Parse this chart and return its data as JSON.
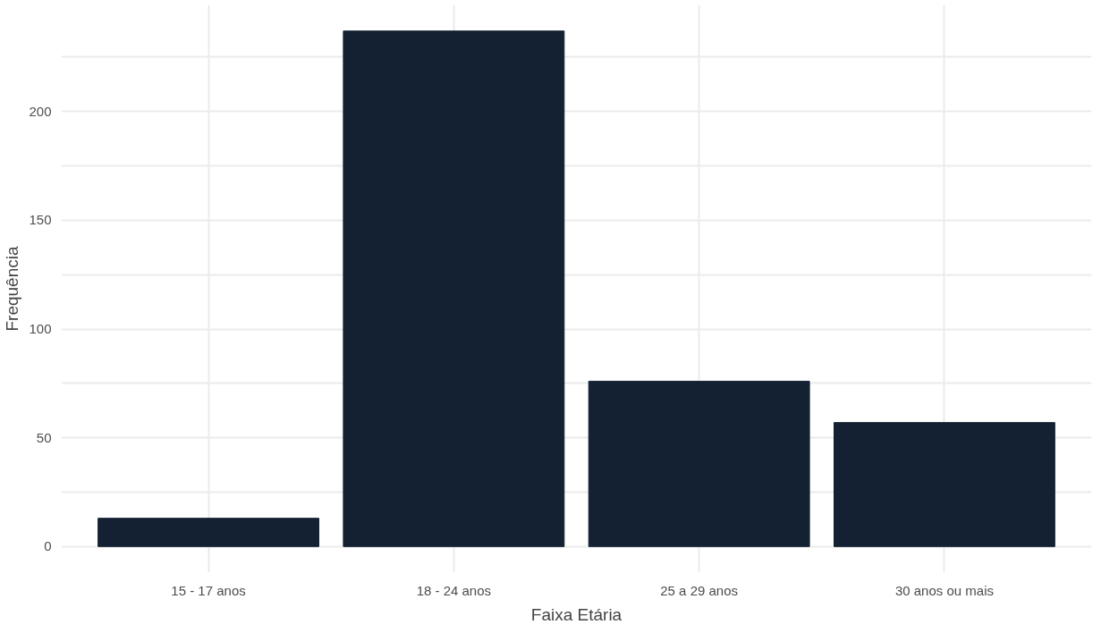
{
  "chart_data": {
    "type": "bar",
    "xlabel": "Faixa Etária",
    "ylabel": "Frequência",
    "categories": [
      "15 - 17 anos",
      "18 - 24 anos",
      "25 a 29 anos",
      "30 anos ou mais"
    ],
    "values": [
      13,
      237,
      76,
      57
    ],
    "color": "#132133",
    "ylim": [
      -12,
      249
    ],
    "yticks": [
      0,
      {
        "value": 25,
        "label": null
      },
      50,
      {
        "value": 75,
        "label": null
      },
      100,
      {
        "value": 125,
        "label": null
      },
      150,
      {
        "value": 175,
        "label": null
      },
      200,
      {
        "value": 225,
        "label": null
      }
    ],
    "grid": true
  }
}
